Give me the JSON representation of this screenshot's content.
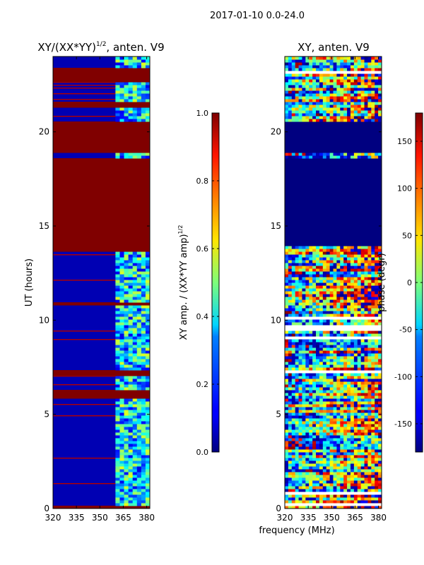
{
  "suptitle": "2017-01-10 0.0-24.0",
  "xlabel_shared": "frequency (MHz)",
  "chart_data": [
    {
      "type": "heatmap",
      "title_main": "XY/(XX*YY)",
      "title_sup": "1/2",
      "title_tail": ", anten. V9",
      "xlabel": "",
      "ylabel": "UT (hours)",
      "x_ticks": [
        "320",
        "335",
        "350",
        "365",
        "380"
      ],
      "x_tick_values": [
        320,
        335,
        350,
        365,
        380
      ],
      "xlim": [
        320,
        382
      ],
      "y_ticks": [
        "0",
        "5",
        "10",
        "15",
        "20"
      ],
      "y_tick_values": [
        0,
        5,
        10,
        15,
        20
      ],
      "ylim": [
        0,
        24
      ],
      "colorbar": {
        "label_main": "XY amp. / (XX*YY amp)",
        "label_sup": "1/2",
        "range": [
          0.0,
          1.0
        ],
        "ticks": [
          "0.0",
          "0.2",
          "0.4",
          "0.6",
          "0.8",
          "1.0"
        ],
        "tick_values": [
          0.0,
          0.2,
          0.4,
          0.6,
          0.8,
          1.0
        ],
        "colormap": "jet"
      },
      "regions": [
        {
          "t0": 0.0,
          "t1": 0.2,
          "value": 1.0
        },
        {
          "t0": 5.8,
          "t1": 6.3,
          "value": 1.0
        },
        {
          "t0": 7.1,
          "t1": 7.4,
          "value": 1.0
        },
        {
          "t0": 10.75,
          "t1": 10.9,
          "value": 1.0
        },
        {
          "t0": 13.7,
          "t1": 18.6,
          "value": 1.0
        },
        {
          "t0": 18.9,
          "t1": 20.6,
          "value": 1.0
        },
        {
          "t0": 21.3,
          "t1": 21.6,
          "value": 1.0
        },
        {
          "t0": 22.6,
          "t1": 23.4,
          "value": 1.0
        }
      ],
      "low_band_mhz": [
        320,
        360
      ],
      "high_band_mhz": [
        360,
        382
      ],
      "low_band_value": 0.05,
      "high_band_value_range": [
        0.1,
        0.6
      ]
    },
    {
      "type": "heatmap",
      "title_main": "XY, anten. V9",
      "xlabel": "frequency (MHz)",
      "ylabel": "",
      "x_ticks": [
        "320",
        "335",
        "350",
        "365",
        "380"
      ],
      "x_tick_values": [
        320,
        335,
        350,
        365,
        380
      ],
      "xlim": [
        320,
        382
      ],
      "y_ticks": [
        "0",
        "5",
        "10",
        "15",
        "20"
      ],
      "y_tick_values": [
        0,
        5,
        10,
        15,
        20
      ],
      "ylim": [
        0,
        24
      ],
      "colorbar": {
        "label_main": "phase (degr)",
        "range": [
          -180,
          180
        ],
        "ticks": [
          "-150",
          "-100",
          "-50",
          "0",
          "50",
          "100",
          "150"
        ],
        "tick_values": [
          -150,
          -100,
          -50,
          0,
          50,
          100,
          150
        ],
        "colormap": "jet"
      },
      "regions": [
        {
          "t0": 13.9,
          "t1": 18.6,
          "value": -180
        },
        {
          "t0": 18.95,
          "t1": 20.6,
          "value": -180
        }
      ],
      "phase_value_range": [
        -180,
        180
      ]
    }
  ]
}
